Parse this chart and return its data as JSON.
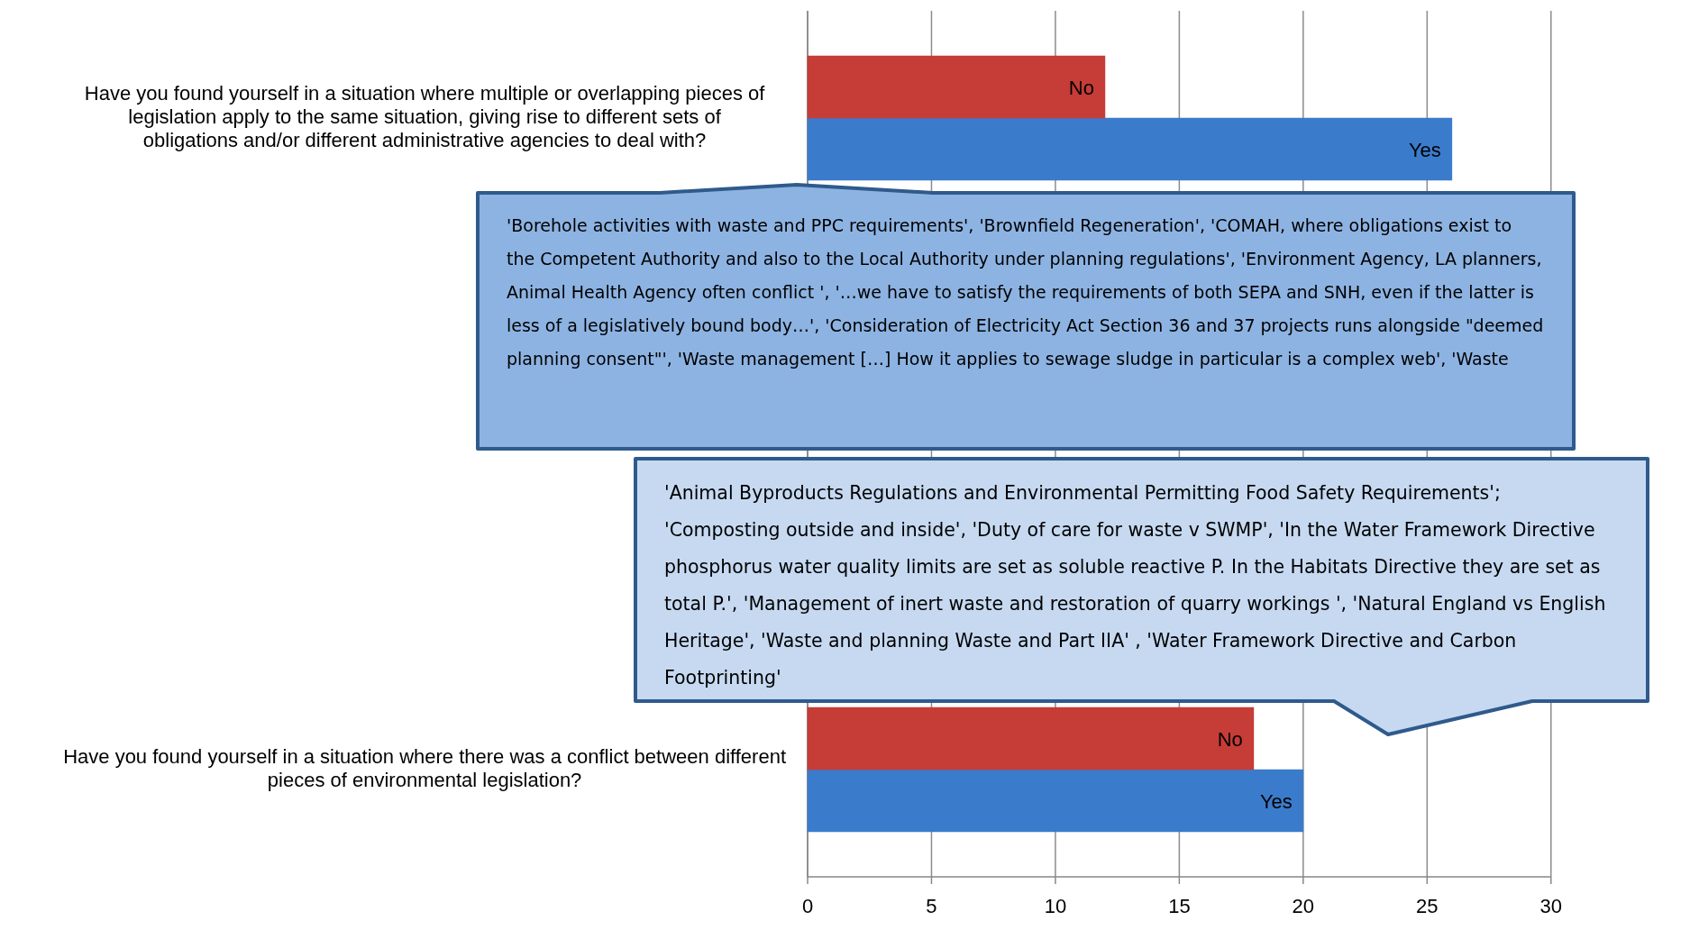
{
  "chart_data": {
    "type": "bar",
    "orientation": "horizontal",
    "categories": [
      "Have you found yourself in a situation where multiple or overlapping pieces of legislation apply to the same situation, giving rise to different sets of obligations and/or different administrative agencies to deal with?",
      "Have you found yourself in a situation where there was a conflict between different pieces of environmental legislation?"
    ],
    "series": [
      {
        "name": "No",
        "color": "#c63c37",
        "values": [
          12,
          18
        ]
      },
      {
        "name": "Yes",
        "color": "#3b7bcb",
        "values": [
          26,
          20
        ]
      }
    ],
    "xlim": [
      0,
      30
    ],
    "xticks": [
      0,
      5,
      10,
      15,
      20,
      25,
      30
    ],
    "grid": "x",
    "annotations": [
      "'Borehole activities with waste and PPC requirements', 'Brownfield Regeneration', 'COMAH, where obligations exist to the Competent Authority and also to the Local Authority under planning regulations', 'Environment Agency, LA planners, Animal Health Agency often conflict ', '…we have to satisfy the requirements of both SEPA and SNH, even if the latter is less of a legislatively bound body…', 'Consideration of Electricity Act Section 36 and 37 projects runs alongside \"deemed planning consent\"', 'Waste management […] How it applies to sewage sludge in particular is a complex web', 'Waste",
      "'Animal Byproducts Regulations and Environmental Permitting Food Safety Requirements'; 'Composting outside and inside', 'Duty of care for waste v SWMP', 'In the Water Framework Directive phosphorus water quality limits are set as soluble reactive P. In the Habitats Directive they are set as total P.', 'Management of inert waste and restoration of quarry workings ', 'Natural England vs English Heritage', 'Waste and planning Waste and Part IIA' , 'Water Framework Directive and Carbon Footprinting'"
    ]
  }
}
